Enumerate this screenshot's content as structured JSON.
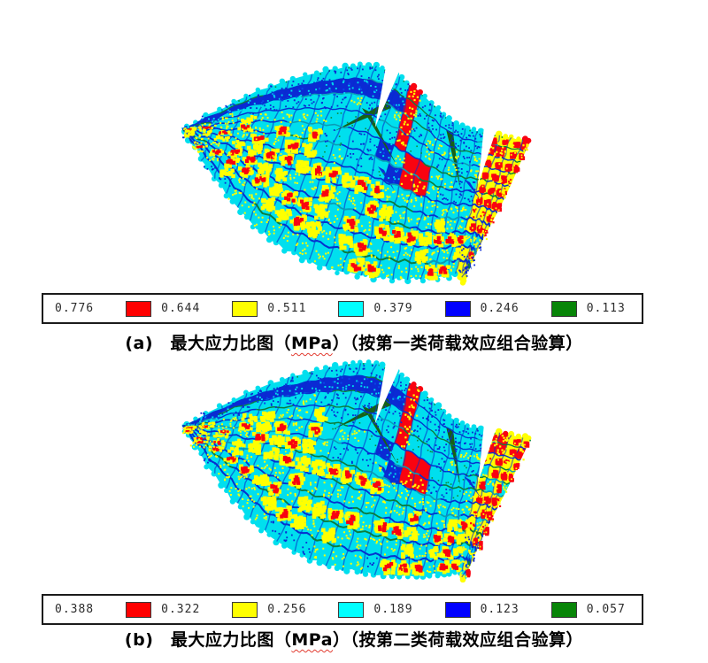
{
  "page": {
    "background_color": "#ffffff"
  },
  "palette": {
    "mesh_cyan": "#00dfee",
    "mesh_blue": "#0b2ad4",
    "mesh_yellow": "#ffff00",
    "mesh_red": "#f90310",
    "mesh_green_wedge": "#176018",
    "row_line_blue": "#0531cf",
    "row_line_green": "#0b7d3c",
    "legend_border": "#1b1b1b"
  },
  "figures": [
    {
      "id": "a",
      "caption_prefix": "(a)　最大应力比图（",
      "caption_unit": "MPa",
      "caption_suffix": "）（按第一类荷载效应组合验算）",
      "legend": [
        {
          "value": "0.776"
        },
        {
          "value": "0.644",
          "swatch": "#ff0000"
        },
        {
          "value": "0.511",
          "swatch": "#ffff00"
        },
        {
          "value": "0.379",
          "swatch": "#00ffff"
        },
        {
          "value": "0.246",
          "swatch": "#0000ff"
        },
        {
          "value": "0.113",
          "swatch": "#088508"
        }
      ]
    },
    {
      "id": "b",
      "caption_prefix": "(b)　最大应力比图（",
      "caption_unit": "MPa",
      "caption_suffix": "）（按第二类荷载效应组合验算）",
      "legend": [
        {
          "value": "0.388"
        },
        {
          "value": "0.322",
          "swatch": "#ff0000"
        },
        {
          "value": "0.256",
          "swatch": "#ffff00"
        },
        {
          "value": "0.189",
          "swatch": "#00ffff"
        },
        {
          "value": "0.123",
          "swatch": "#0000ff"
        },
        {
          "value": "0.057",
          "swatch": "#088508"
        }
      ]
    }
  ]
}
